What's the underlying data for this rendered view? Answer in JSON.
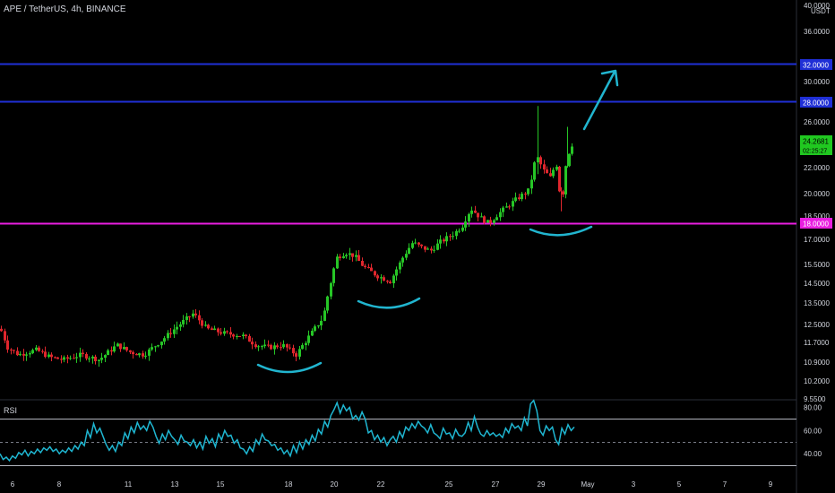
{
  "header": {
    "symbol_line": "APE / TetherUS, 4h, BINANCE"
  },
  "chart_data": {
    "type": "candlestick",
    "price_axis": {
      "currency": "USDT",
      "ticks": [
        "40.0000",
        "36.0000",
        "32.0000",
        "30.0000",
        "28.0000",
        "26.0000",
        "24.2681",
        "22.0000",
        "20.0000",
        "18.5000",
        "18.0000",
        "17.0000",
        "15.5000",
        "14.5000",
        "13.5000",
        "12.5000",
        "11.7000",
        "10.9000",
        "10.2000",
        "9.5500"
      ],
      "last_price": "24.2681",
      "countdown": "02:25:27",
      "scale": "log"
    },
    "x_axis": {
      "ticks": [
        "6",
        "8",
        "11",
        "13",
        "15",
        "18",
        "20",
        "22",
        "25",
        "27",
        "29",
        "May",
        "3",
        "5",
        "7",
        "9"
      ]
    },
    "horizontal_levels": [
      {
        "price": 32.0,
        "label": "32.0000",
        "color": "#1f2fd6"
      },
      {
        "price": 28.0,
        "label": "28.0000",
        "color": "#1f2fd6"
      },
      {
        "price": 18.0,
        "label": "18.0000",
        "color": "#e91ee0"
      }
    ],
    "colors": {
      "up": "#26c626",
      "down": "#e0262d",
      "rsi": "#1fb6d1",
      "annotation": "#21b5cf"
    },
    "rsi": {
      "label": "RSI",
      "ticks": [
        "80.00",
        "60.00",
        "40.00"
      ],
      "bands": [
        70,
        50,
        30
      ],
      "values": [
        40,
        35,
        37,
        34,
        38,
        36,
        41,
        39,
        43,
        38,
        42,
        40,
        44,
        41,
        45,
        43,
        46,
        42,
        44,
        40,
        43,
        41,
        45,
        42,
        47,
        44,
        50,
        47,
        60,
        54,
        66,
        58,
        62,
        55,
        48,
        43,
        47,
        42,
        50,
        47,
        58,
        53,
        63,
        58,
        67,
        61,
        64,
        60,
        68,
        63,
        55,
        49,
        57,
        52,
        60,
        55,
        52,
        48,
        56,
        51,
        50,
        47,
        52,
        45,
        50,
        44,
        55,
        49,
        53,
        46,
        57,
        52,
        60,
        55,
        56,
        49,
        52,
        45,
        44,
        40,
        46,
        42,
        52,
        48,
        57,
        52,
        51,
        47,
        48,
        43,
        45,
        40,
        43,
        38,
        47,
        41,
        50,
        44,
        52,
        48,
        56,
        51,
        61,
        57,
        68,
        63,
        73,
        78,
        84,
        75,
        82,
        77,
        80,
        70,
        73,
        69,
        76,
        70,
        58,
        60,
        52,
        56,
        50,
        54,
        47,
        52,
        55,
        50,
        59,
        54,
        63,
        60,
        66,
        62,
        68,
        64,
        62,
        58,
        65,
        58,
        56,
        53,
        62,
        57,
        58,
        53,
        61,
        56,
        55,
        58,
        67,
        60,
        72,
        63,
        57,
        55,
        60,
        56,
        58,
        55,
        57,
        54,
        62,
        58,
        66,
        62,
        64,
        60,
        71,
        64,
        83,
        86,
        77,
        60,
        56,
        64,
        60,
        63,
        52,
        48,
        62,
        57,
        65,
        60,
        63
      ]
    },
    "annotations": [
      {
        "type": "arc",
        "label": "rounding-bottom-1"
      },
      {
        "type": "arc",
        "label": "rounding-bottom-2"
      },
      {
        "type": "arc",
        "label": "rounding-bottom-3"
      },
      {
        "type": "arrow",
        "label": "projection-arrow"
      }
    ]
  }
}
